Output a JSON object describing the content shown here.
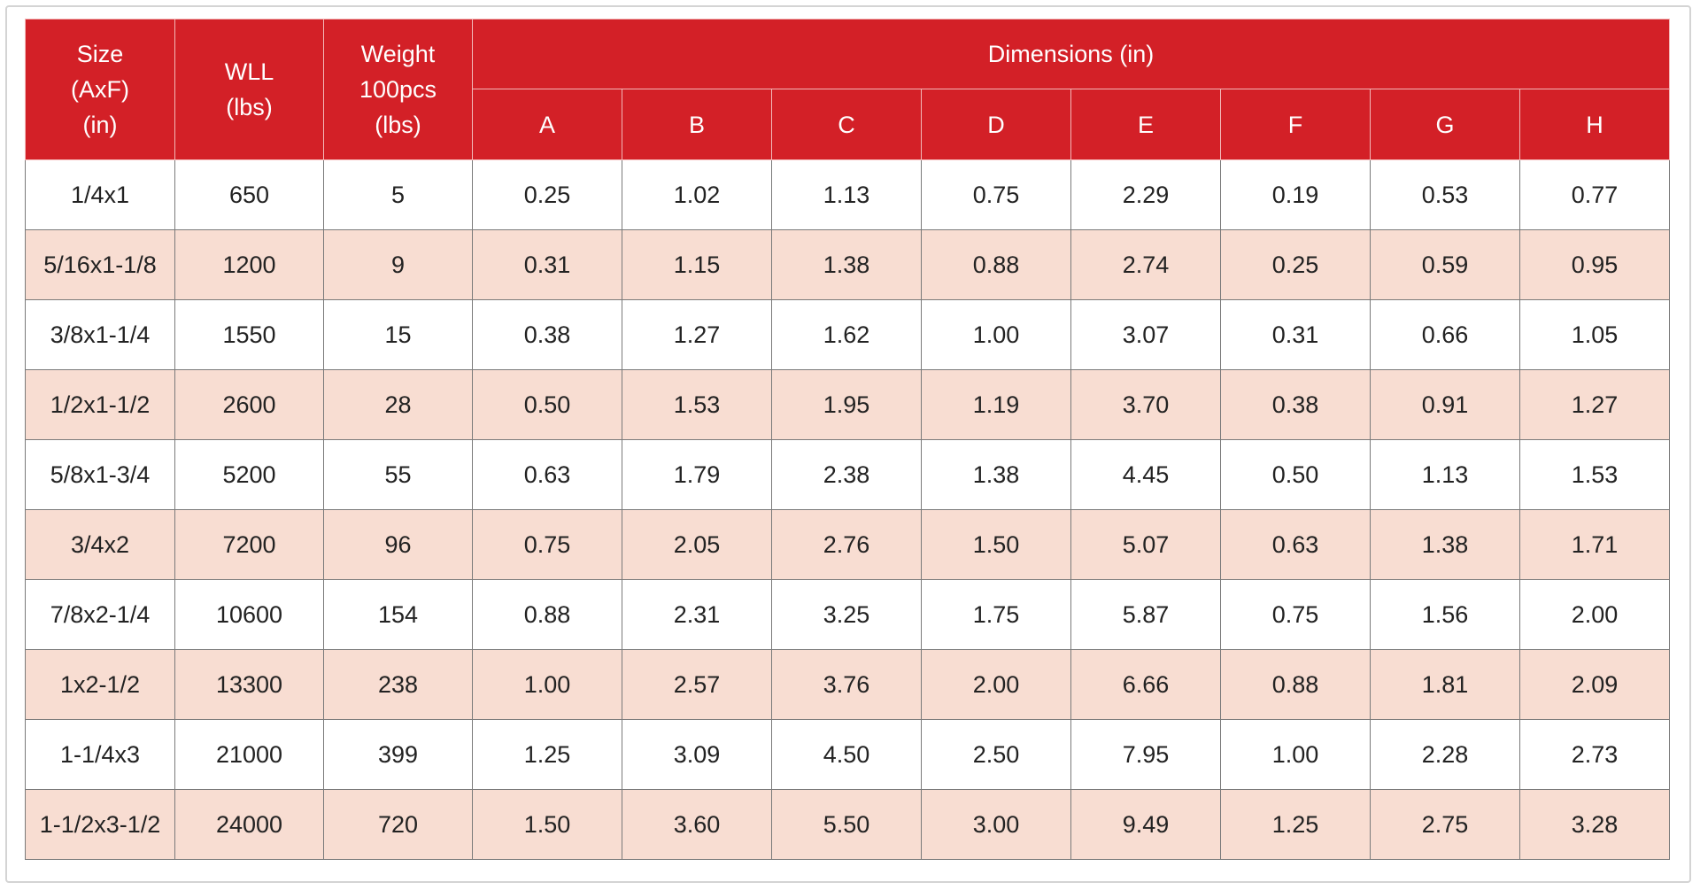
{
  "header": {
    "size_line1": "Size",
    "size_line2": "(AxF)",
    "size_line3": "(in)",
    "wll_line1": "WLL",
    "wll_line2": "(lbs)",
    "weight_line1": "Weight",
    "weight_line2": "100pcs",
    "weight_line3": "(lbs)",
    "dimensions": "Dimensions (in)",
    "dim_columns": [
      "A",
      "B",
      "C",
      "D",
      "E",
      "F",
      "G",
      "H"
    ]
  },
  "colors": {
    "header_bg": "#d32027",
    "header_text": "#ffffff",
    "stripe_bg": "#f8ddd2",
    "row_bg": "#ffffff"
  },
  "rows": [
    [
      "1/4x1",
      "650",
      "5",
      "0.25",
      "1.02",
      "1.13",
      "0.75",
      "2.29",
      "0.19",
      "0.53",
      "0.77"
    ],
    [
      "5/16x1-1/8",
      "1200",
      "9",
      "0.31",
      "1.15",
      "1.38",
      "0.88",
      "2.74",
      "0.25",
      "0.59",
      "0.95"
    ],
    [
      "3/8x1-1/4",
      "1550",
      "15",
      "0.38",
      "1.27",
      "1.62",
      "1.00",
      "3.07",
      "0.31",
      "0.66",
      "1.05"
    ],
    [
      "1/2x1-1/2",
      "2600",
      "28",
      "0.50",
      "1.53",
      "1.95",
      "1.19",
      "3.70",
      "0.38",
      "0.91",
      "1.27"
    ],
    [
      "5/8x1-3/4",
      "5200",
      "55",
      "0.63",
      "1.79",
      "2.38",
      "1.38",
      "4.45",
      "0.50",
      "1.13",
      "1.53"
    ],
    [
      "3/4x2",
      "7200",
      "96",
      "0.75",
      "2.05",
      "2.76",
      "1.50",
      "5.07",
      "0.63",
      "1.38",
      "1.71"
    ],
    [
      "7/8x2-1/4",
      "10600",
      "154",
      "0.88",
      "2.31",
      "3.25",
      "1.75",
      "5.87",
      "0.75",
      "1.56",
      "2.00"
    ],
    [
      "1x2-1/2",
      "13300",
      "238",
      "1.00",
      "2.57",
      "3.76",
      "2.00",
      "6.66",
      "0.88",
      "1.81",
      "2.09"
    ],
    [
      "1-1/4x3",
      "21000",
      "399",
      "1.25",
      "3.09",
      "4.50",
      "2.50",
      "7.95",
      "1.00",
      "2.28",
      "2.73"
    ],
    [
      "1-1/2x3-1/2",
      "24000",
      "720",
      "1.50",
      "3.60",
      "5.50",
      "3.00",
      "9.49",
      "1.25",
      "2.75",
      "3.28"
    ]
  ]
}
